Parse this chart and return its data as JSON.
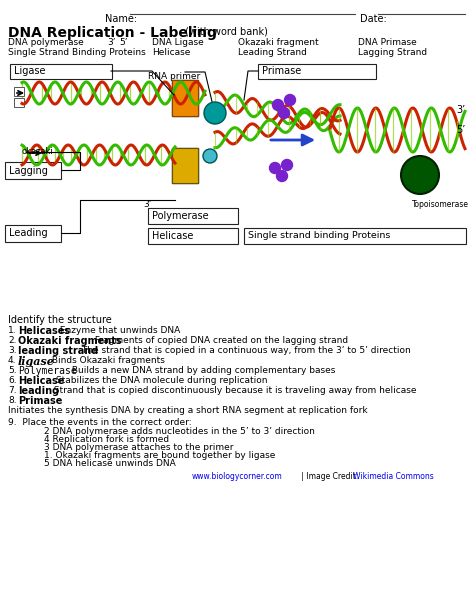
{
  "bg_color": "#ffffff",
  "text_color": "#000000",
  "link_color": "#0000ee",
  "name_label": "Name:",
  "date_label": "Date:",
  "title_bold": "DNA Replication - Labeling",
  "title_small": " (with word bank)",
  "wb_col1_line1": "DNA polymerase",
  "wb_col1_line2": "Single Strand Binding Proteins",
  "wb_col2a": "3’",
  "wb_col2b": "5’",
  "wb_col2_line2": "Helicase",
  "wb_col3_line1": "DNA Ligase",
  "wb_col4_line1": "Okazaki fragment",
  "wb_col4_line2": "Leading Strand",
  "wb_col5_line1": "DNA Primase",
  "wb_col5_line2": "Lagging Strand",
  "identify_header": "Identify the structure",
  "items": [
    {
      "num": "1.",
      "term": "Helicases",
      "style": "bold",
      "rest": " Enzyme that unwinds DNA"
    },
    {
      "num": "2.",
      "term": "Okazaki fragments",
      "style": "bold",
      "rest": " Fragments of copied DNA created on the lagging strand"
    },
    {
      "num": "3.",
      "term": "leading strand",
      "style": "bold",
      "rest": " The strand that is copied in a continuous way, from the 3’ to 5’ direction"
    },
    {
      "num": "4.",
      "term": "ligase",
      "style": "bold_italic_serif",
      "rest": " Binds Okazaki fragments"
    },
    {
      "num": "5.",
      "term": "Polymerase",
      "style": "mono",
      "rest": " Builds a new DNA strand by adding complementary bases"
    },
    {
      "num": "6.",
      "term": "Helicase",
      "style": "bold",
      "rest": " Stabilizes the DNA molecule during replication"
    },
    {
      "num": "7.",
      "term": "leading",
      "style": "bold",
      "rest": "  Strand that is copied discontinuously because it is traveling away from helicase"
    },
    {
      "num": "8.",
      "term": "Primase",
      "style": "bold",
      "rest": ""
    },
    {
      "num": "",
      "term": "",
      "style": "plain",
      "rest": "Initiates the synthesis DNA by creating a short RNA segment at replication fork"
    }
  ],
  "q9_header": "9.  Place the events in the correct order:",
  "q9_items": [
    "2 DNA polymerase adds nucleotides in the 5’ to 3’ direction",
    "4 Replication fork is formed",
    "3 DNA polymerase attaches to the primer",
    "1. Okazaki fragments are bound together by ligase",
    "5 DNA helicase unwinds DNA"
  ],
  "footer_plain": " | Image Credit: ",
  "footer_link1": "www.biologycorner.com",
  "footer_link2": "Wikimedia Commons"
}
